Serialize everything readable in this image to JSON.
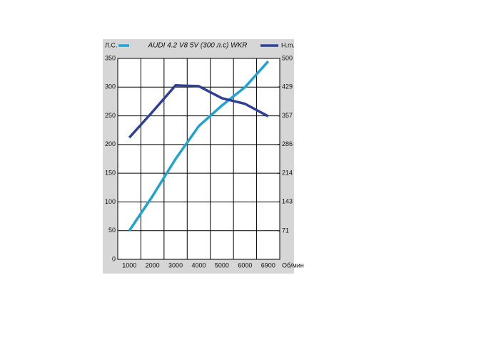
{
  "chart_data": {
    "type": "line",
    "title": "AUDI 4.2 V8 5V (300 л.с) WKR",
    "x_label": "Об/мин",
    "categories": [
      "1000",
      "2000",
      "3000",
      "4000",
      "5000",
      "6000",
      "6900"
    ],
    "series": [
      {
        "name": "Л.С.",
        "color": "#1fa3d0",
        "values": [
          50,
          110,
          175,
          232,
          268,
          300,
          345
        ]
      },
      {
        "name": "Н.m.",
        "color": "#2e3f96",
        "axis": "y2",
        "values": [
          303,
          367,
          433,
          431,
          401,
          387,
          356
        ]
      }
    ],
    "ylim": [
      0,
      350
    ],
    "yticks": [
      0,
      50,
      100,
      150,
      200,
      250,
      300,
      350
    ],
    "y2lim": [
      0,
      500
    ],
    "y2ticks": [
      71,
      143,
      214,
      286,
      357,
      429,
      500
    ],
    "grid": true
  }
}
